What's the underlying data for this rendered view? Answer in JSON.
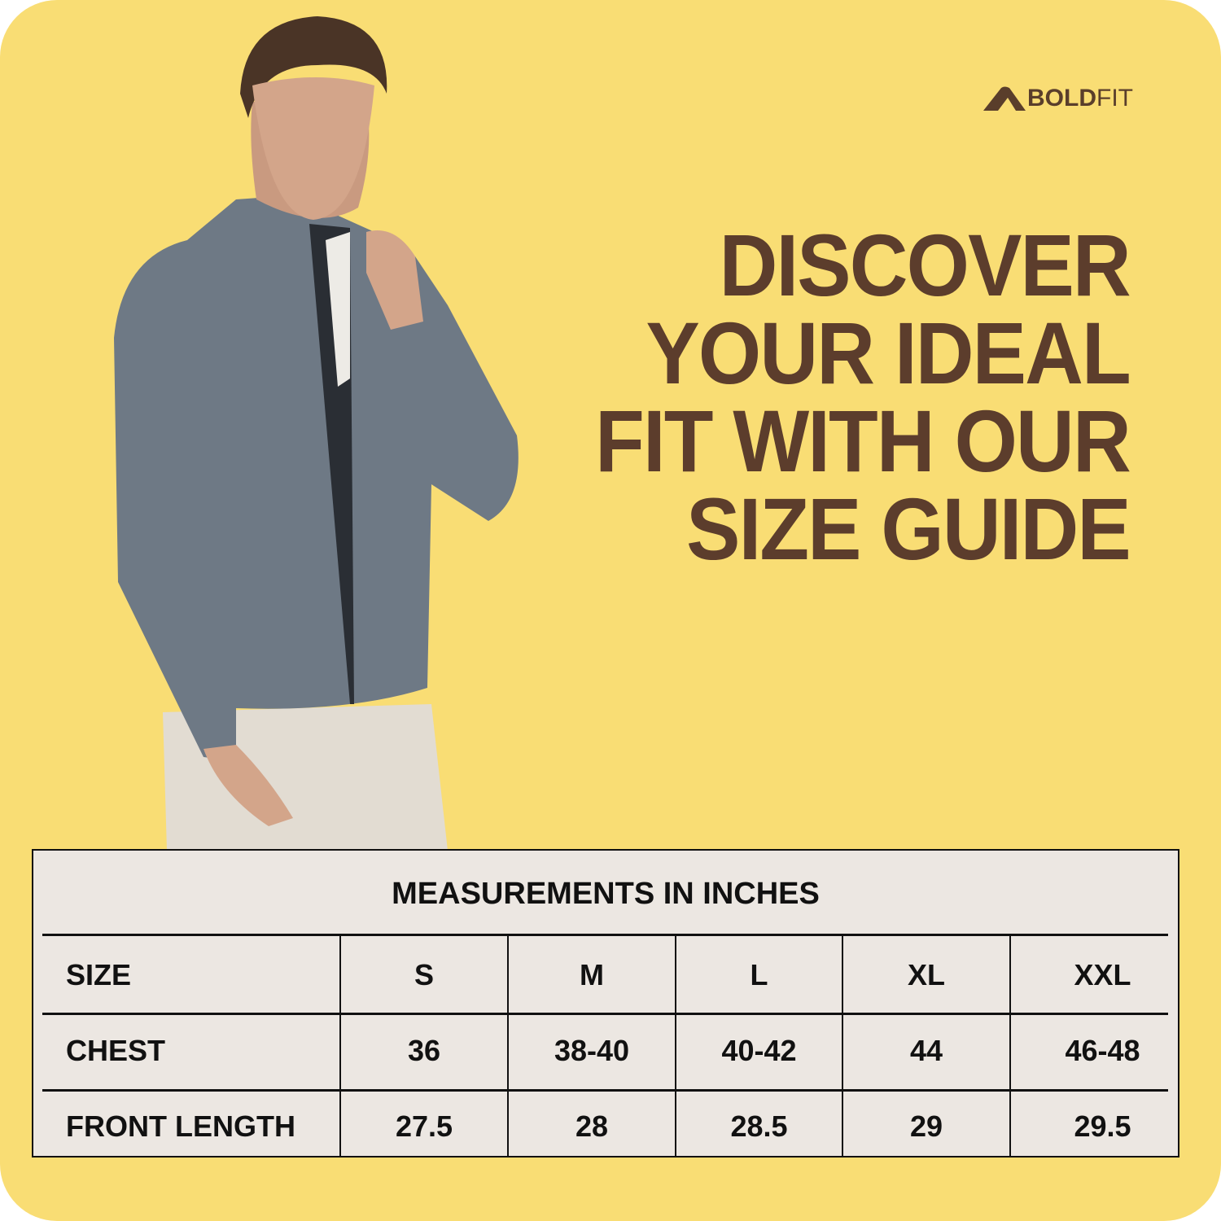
{
  "brand": {
    "logo_text_bold": "BOLD",
    "logo_text_light": "FIT",
    "brown": "#5C3D2C",
    "background": "#F9DD74"
  },
  "headline": [
    "DISCOVER",
    "YOUR IDEAL",
    "FIT WITH OUR",
    "SIZE GUIDE"
  ],
  "image": {
    "subject": "model-wearing-grey-fleece-jacket"
  },
  "table": {
    "title": "MEASUREMENTS IN INCHES",
    "header": {
      "label": "SIZE",
      "sizes": [
        "S",
        "M",
        "L",
        "XL",
        "XXL"
      ]
    },
    "rows": [
      {
        "label": "CHEST",
        "values": [
          "36",
          "38-40",
          "40-42",
          "44",
          "46-48"
        ]
      },
      {
        "label": "FRONT LENGTH",
        "values": [
          "27.5",
          "28",
          "28.5",
          "29",
          "29.5"
        ]
      }
    ]
  }
}
